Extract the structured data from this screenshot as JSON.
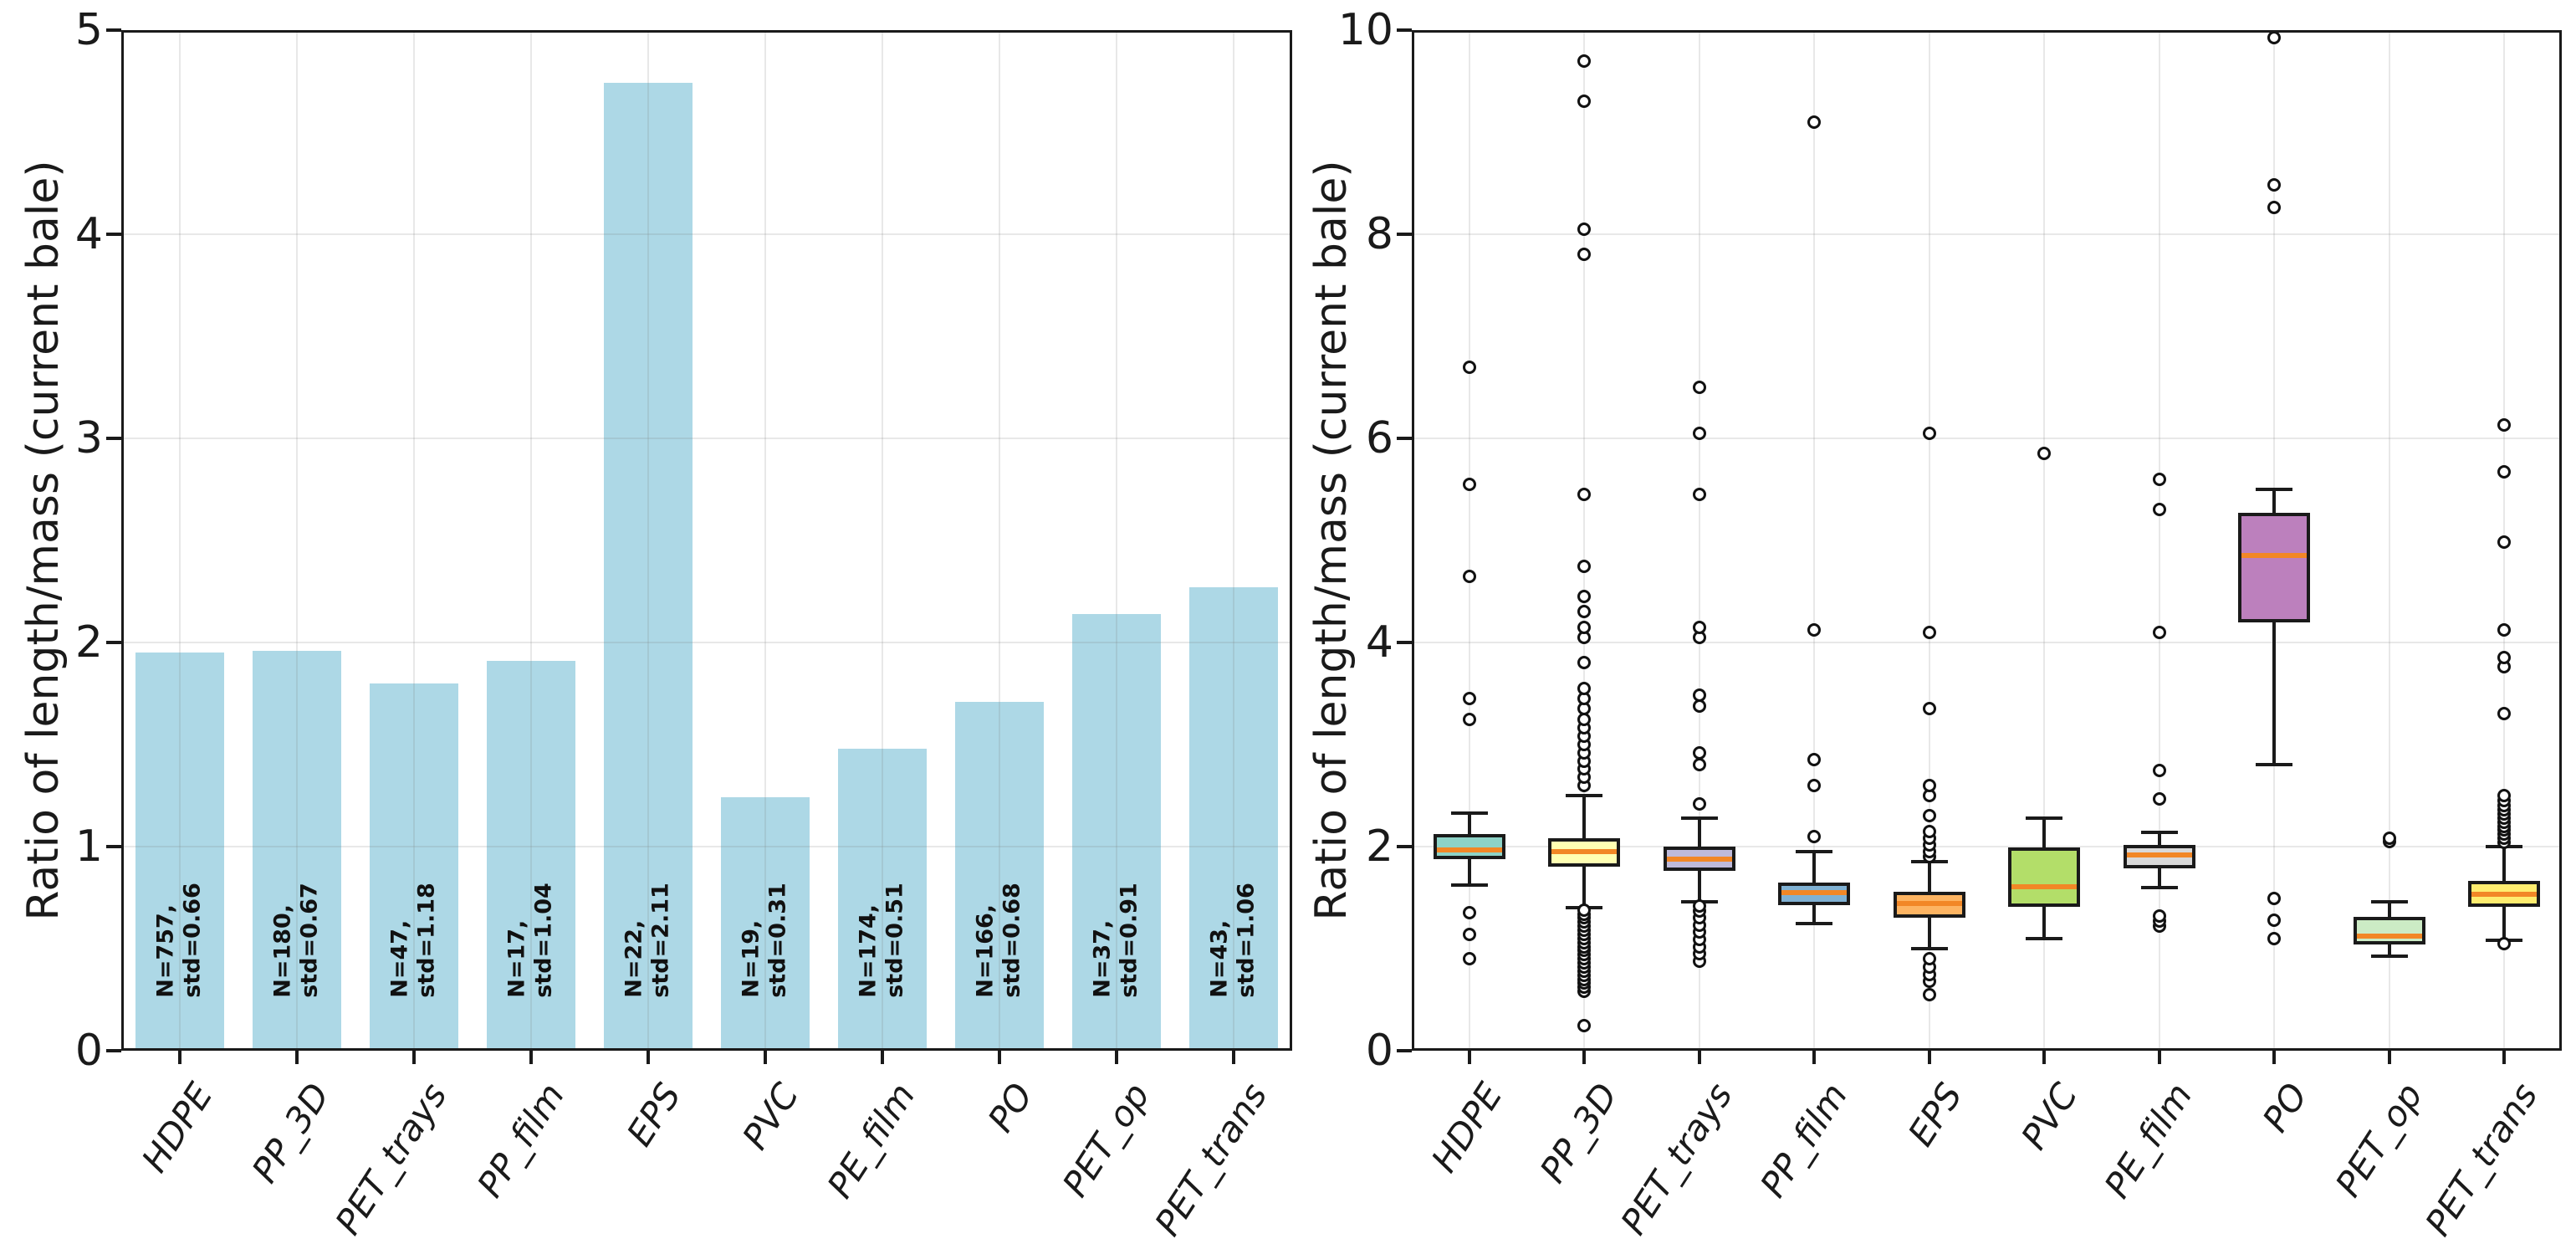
{
  "figure_background": "#ffffff",
  "chart_data": [
    {
      "type": "bar",
      "title": "",
      "xlabel": "",
      "ylabel": "Ratio of length/mass (current bale)",
      "ylim": [
        0,
        5
      ],
      "yticks": [
        0,
        1,
        2,
        3,
        4,
        5
      ],
      "grid": "on",
      "bar_color": "#add8e6",
      "categories": [
        "HDPE",
        "PP_3D",
        "PET_trays",
        "PP_film",
        "EPS",
        "PVC",
        "PE_film",
        "PO",
        "PET_op",
        "PET_trans"
      ],
      "values": [
        1.95,
        1.96,
        1.8,
        1.91,
        4.74,
        1.24,
        1.48,
        1.71,
        2.14,
        2.27
      ],
      "annotations": [
        {
          "line1": "N=757,",
          "line2": "std=0.66"
        },
        {
          "line1": "N=180,",
          "line2": "std=0.67"
        },
        {
          "line1": "N=47,",
          "line2": "std=1.18"
        },
        {
          "line1": "N=17,",
          "line2": "std=1.04"
        },
        {
          "line1": "N=22,",
          "line2": "std=2.11"
        },
        {
          "line1": "N=19,",
          "line2": "std=0.31"
        },
        {
          "line1": "N=174,",
          "line2": "std=0.51"
        },
        {
          "line1": "N=166,",
          "line2": "std=0.68"
        },
        {
          "line1": "N=37,",
          "line2": "std=0.91"
        },
        {
          "line1": "N=43,",
          "line2": "std=1.06"
        }
      ]
    },
    {
      "type": "boxplot",
      "title": "",
      "xlabel": "",
      "ylabel": "Ratio of length/mass (current bale)",
      "ylim": [
        0,
        10
      ],
      "yticks": [
        0,
        2,
        4,
        6,
        8,
        10
      ],
      "grid": "on",
      "median_color": "#f28726",
      "categories": [
        "HDPE",
        "PP_3D",
        "PET_trays",
        "PP_film",
        "EPS",
        "PVC",
        "PE_film",
        "PO",
        "PET_op",
        "PET_trans"
      ],
      "series": [
        {
          "name": "HDPE",
          "color": "#8dd3c7",
          "whislo": 1.62,
          "q1": 1.88,
          "med": 1.97,
          "q3": 2.12,
          "whishi": 2.33,
          "fliers": [
            0.9,
            1.14,
            1.35,
            3.25,
            3.45,
            4.65,
            5.55,
            6.7
          ]
        },
        {
          "name": "PP_3D",
          "color": "#ffffb3",
          "whislo": 1.4,
          "q1": 1.8,
          "med": 1.95,
          "q3": 2.08,
          "whishi": 2.5,
          "fliers": [
            0.25,
            0.58,
            0.62,
            0.66,
            0.7,
            0.74,
            0.78,
            0.82,
            0.86,
            0.9,
            0.94,
            0.98,
            1.02,
            1.06,
            1.1,
            1.14,
            1.18,
            1.22,
            1.26,
            1.3,
            1.34,
            1.38,
            2.6,
            2.68,
            2.76,
            2.84,
            2.92,
            3.0,
            3.08,
            3.16,
            3.25,
            3.35,
            3.45,
            3.55,
            3.8,
            4.05,
            4.15,
            4.3,
            4.45,
            4.75,
            5.45,
            7.8,
            8.05,
            9.3,
            9.7
          ]
        },
        {
          "name": "PET_trays",
          "color": "#bebada",
          "whislo": 1.46,
          "q1": 1.76,
          "med": 1.88,
          "q3": 2.0,
          "whishi": 2.28,
          "fliers": [
            0.88,
            0.95,
            1.02,
            1.09,
            1.16,
            1.23,
            1.3,
            1.37,
            1.42,
            2.42,
            2.8,
            2.92,
            3.38,
            3.48,
            4.05,
            4.15,
            5.45,
            6.05,
            6.5
          ]
        },
        {
          "name": "PP_film",
          "color": "#80b1d3",
          "whislo": 1.25,
          "q1": 1.43,
          "med": 1.55,
          "q3": 1.65,
          "whishi": 1.95,
          "fliers": [
            2.1,
            2.6,
            2.85,
            4.12,
            9.1
          ]
        },
        {
          "name": "EPS",
          "color": "#fdb462",
          "whislo": 1.0,
          "q1": 1.3,
          "med": 1.44,
          "q3": 1.56,
          "whishi": 1.85,
          "fliers": [
            0.55,
            0.68,
            0.75,
            0.82,
            0.9,
            1.9,
            1.95,
            2.02,
            2.08,
            2.15,
            2.3,
            2.5,
            2.6,
            3.35,
            4.1,
            6.05
          ]
        },
        {
          "name": "PVC",
          "color": "#b3de69",
          "whislo": 1.1,
          "q1": 1.41,
          "med": 1.61,
          "q3": 1.99,
          "whishi": 2.28,
          "fliers": [
            5.85
          ]
        },
        {
          "name": "PE_film",
          "color": "#d9d9d9",
          "whislo": 1.6,
          "q1": 1.79,
          "med": 1.92,
          "q3": 2.02,
          "whishi": 2.14,
          "fliers": [
            1.22,
            1.27,
            1.32,
            2.47,
            2.75,
            4.1,
            5.3,
            5.6
          ]
        },
        {
          "name": "PO",
          "color": "#bc80bd",
          "whislo": 2.8,
          "q1": 4.2,
          "med": 4.85,
          "q3": 5.27,
          "whishi": 5.5,
          "fliers": [
            1.1,
            1.28,
            1.49,
            8.26,
            8.48,
            9.93
          ]
        },
        {
          "name": "PET_op",
          "color": "#ccebc5",
          "whislo": 0.93,
          "q1": 1.04,
          "med": 1.12,
          "q3": 1.31,
          "whishi": 1.46,
          "fliers": [
            2.05,
            2.08
          ]
        },
        {
          "name": "PET_trans",
          "color": "#ffed6f",
          "whislo": 1.08,
          "q1": 1.41,
          "med": 1.53,
          "q3": 1.66,
          "whishi": 2.0,
          "fliers": [
            1.05,
            2.04,
            2.08,
            2.12,
            2.16,
            2.2,
            2.24,
            2.28,
            2.32,
            2.36,
            2.4,
            2.45,
            2.5,
            3.3,
            3.76,
            3.85,
            4.12,
            4.98,
            5.67,
            6.13
          ]
        }
      ]
    }
  ]
}
